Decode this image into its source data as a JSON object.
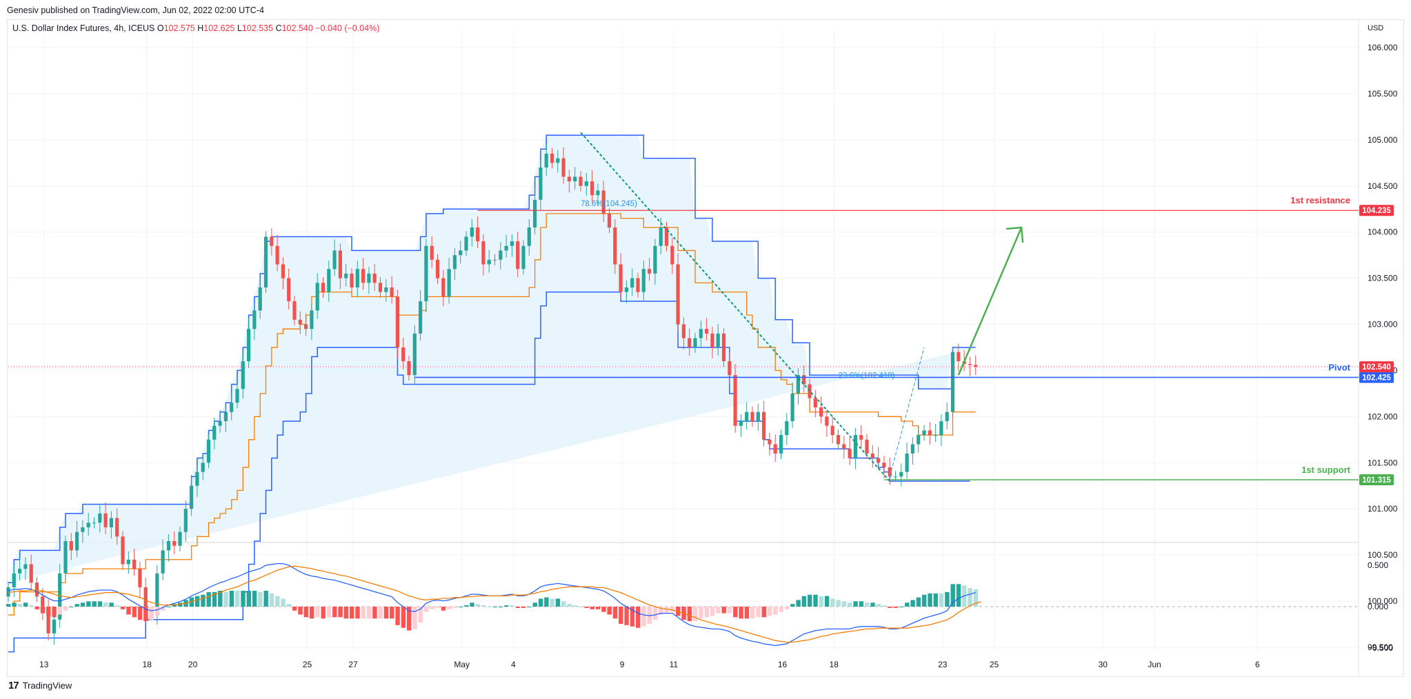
{
  "header": {
    "published": "Genesiv published on TradingView.com, Jun 02, 2022 02:00 UTC-4",
    "symbol": "U.S. Dollar Index Futures, 4h, ICEUS",
    "o_label": "O",
    "o": "102.575",
    "h_label": "H",
    "h": "102.625",
    "l_label": "L",
    "l": "102.535",
    "c_label": "C",
    "c": "102.540",
    "change": "−0.040 (−0.04%)"
  },
  "footer": {
    "brand": "TradingView",
    "logo": "17"
  },
  "colors": {
    "up": "#26a69a",
    "down": "#ef5350",
    "donchian": "#2962ff",
    "basis": "#f57c00",
    "fill": "#e3f2fd",
    "resistance": "#f23645",
    "support": "#4caf50",
    "pivot": "#2962ff"
  },
  "chart_data": [
    {
      "type": "candlestick",
      "currency": "USD",
      "title": "",
      "ylim": [
        99.3,
        106.5
      ],
      "y_ticks": [
        "106.000",
        "105.500",
        "105.000",
        "104.500",
        "104.000",
        "103.500",
        "103.000",
        "102.500",
        "102.000",
        "101.500",
        "101.000",
        "100.500",
        "100.000",
        "99.500"
      ],
      "x_ticks": [
        "13",
        "18",
        "20",
        "25",
        "27",
        "May",
        "4",
        "9",
        "11",
        "16",
        "18",
        "23",
        "25",
        "30",
        "Jun",
        "6"
      ],
      "last_price": "102.540",
      "levels": [
        {
          "name": "1st resistance",
          "value": 104.235,
          "label": "104.235"
        },
        {
          "name": "Pivot",
          "value": 102.425,
          "label": "102.425"
        },
        {
          "name": "1st support",
          "value": 101.315,
          "label": "101.315"
        }
      ],
      "fib_labels": [
        "78.6%(104.245)",
        "23.6%(102.410)"
      ],
      "closes": [
        100.15,
        100.3,
        100.35,
        100.4,
        100.2,
        100.05,
        99.9,
        99.65,
        99.8,
        100.3,
        100.65,
        100.55,
        100.75,
        100.8,
        100.85,
        100.85,
        100.95,
        100.8,
        100.9,
        100.7,
        100.4,
        100.45,
        100.35,
        100.15,
        99.85,
        99.85,
        100.3,
        100.55,
        100.65,
        100.6,
        100.75,
        101.0,
        101.25,
        101.4,
        101.5,
        101.75,
        101.9,
        101.95,
        102.05,
        102.15,
        102.3,
        102.6,
        102.95,
        103.15,
        103.4,
        103.95,
        103.85,
        103.65,
        103.5,
        103.25,
        103.05,
        103.0,
        102.95,
        103.15,
        103.45,
        103.35,
        103.6,
        103.8,
        103.5,
        103.55,
        103.4,
        103.6,
        103.45,
        103.55,
        103.45,
        103.35,
        103.4,
        103.3,
        102.75,
        102.6,
        102.45,
        102.9,
        103.25,
        103.85,
        103.7,
        103.5,
        103.3,
        103.6,
        103.75,
        103.8,
        103.95,
        104.05,
        103.9,
        103.65,
        103.7,
        103.7,
        103.8,
        103.85,
        103.9,
        103.6,
        103.85,
        104.05,
        104.35,
        104.7,
        104.85,
        104.75,
        104.8,
        104.6,
        104.55,
        104.6,
        104.5,
        104.55,
        104.4,
        104.45,
        104.2,
        104.05,
        103.65,
        103.35,
        103.4,
        103.5,
        103.35,
        103.6,
        103.55,
        103.85,
        104.05,
        103.85,
        103.65,
        103.0,
        102.85,
        102.75,
        102.85,
        102.95,
        102.9,
        102.75,
        102.9,
        102.6,
        102.45,
        101.9,
        101.95,
        102.05,
        101.95,
        102.05,
        101.75,
        101.7,
        101.6,
        101.8,
        101.95,
        102.25,
        102.45,
        102.35,
        102.2,
        102.1,
        102.0,
        101.9,
        101.8,
        101.7,
        101.65,
        101.55,
        101.8,
        101.75,
        101.6,
        101.55,
        101.5,
        101.45,
        101.35,
        101.35,
        101.4,
        101.6,
        101.7,
        101.8,
        101.85,
        101.8,
        101.8,
        101.95,
        102.05,
        102.7,
        102.6,
        102.57,
        102.56,
        102.54
      ],
      "donchian_upper": [
        100.2,
        100.45,
        100.55,
        100.55,
        100.55,
        100.55,
        100.55,
        100.55,
        100.55,
        100.8,
        100.95,
        100.95,
        100.95,
        101.05,
        101.05,
        101.05,
        101.05,
        101.05,
        101.05,
        101.05,
        101.05,
        101.05,
        101.05,
        101.05,
        101.05,
        101.05,
        101.05,
        101.05,
        101.05,
        101.05,
        101.05,
        101.05,
        101.35,
        101.55,
        101.6,
        101.85,
        101.95,
        102.05,
        102.15,
        102.35,
        102.5,
        102.75,
        103.1,
        103.3,
        103.55,
        103.9,
        103.95,
        103.95,
        103.95,
        103.95,
        103.95,
        103.95,
        103.95,
        103.95,
        103.95,
        103.95,
        103.95,
        103.95,
        103.95,
        103.95,
        103.8,
        103.8,
        103.8,
        103.8,
        103.8,
        103.8,
        103.8,
        103.8,
        103.8,
        103.8,
        103.8,
        103.8,
        103.95,
        104.2,
        104.2,
        104.2,
        104.25,
        104.25,
        104.25,
        104.25,
        104.25,
        104.25,
        104.25,
        104.25,
        104.25,
        104.25,
        104.25,
        104.25,
        104.25,
        104.25,
        104.25,
        104.4,
        104.6,
        104.9,
        105.05,
        105.05,
        105.05,
        105.05,
        105.05,
        105.05,
        105.05,
        105.05,
        105.05,
        105.05,
        105.05,
        105.05,
        105.05,
        105.05,
        105.05,
        105.05,
        105.05,
        104.8,
        104.8,
        104.8,
        104.8,
        104.8,
        104.8,
        104.8,
        104.8,
        104.8,
        104.15,
        104.15,
        104.15,
        103.9,
        103.9,
        103.9,
        103.9,
        103.9,
        103.9,
        103.9,
        103.9,
        103.5,
        103.5,
        103.5,
        103.05,
        103.05,
        103.05,
        102.8,
        102.8,
        102.8,
        102.45,
        102.45,
        102.45,
        102.45,
        102.45,
        102.45,
        102.45,
        102.45,
        102.45,
        102.45,
        102.45,
        102.45,
        102.45,
        102.45,
        102.45,
        102.45,
        102.45,
        102.45,
        102.45,
        102.3,
        102.3,
        102.3,
        102.3,
        102.3,
        102.3,
        102.75,
        102.75,
        102.75,
        102.75,
        102.75
      ],
      "donchian_lower": [
        99.45,
        99.6,
        99.6,
        99.6,
        99.6,
        99.6,
        99.6,
        99.6,
        99.6,
        99.6,
        99.6,
        99.6,
        99.6,
        99.6,
        99.6,
        99.6,
        99.6,
        99.6,
        99.6,
        99.6,
        99.6,
        99.6,
        99.6,
        99.6,
        99.8,
        99.8,
        99.8,
        99.8,
        99.8,
        99.8,
        99.8,
        99.8,
        99.8,
        99.8,
        99.8,
        99.8,
        99.8,
        99.8,
        99.8,
        99.8,
        99.8,
        100.1,
        100.4,
        100.65,
        100.95,
        101.2,
        101.55,
        101.8,
        101.95,
        101.95,
        101.95,
        102.05,
        102.25,
        102.65,
        102.75,
        102.75,
        102.75,
        102.75,
        102.75,
        102.75,
        102.75,
        102.75,
        102.75,
        102.75,
        102.75,
        102.75,
        102.75,
        102.75,
        102.45,
        102.35,
        102.35,
        102.35,
        102.35,
        102.35,
        102.35,
        102.35,
        102.35,
        102.35,
        102.35,
        102.35,
        102.35,
        102.35,
        102.35,
        102.35,
        102.35,
        102.35,
        102.35,
        102.35,
        102.35,
        102.35,
        102.35,
        102.35,
        102.85,
        103.2,
        103.35,
        103.35,
        103.35,
        103.35,
        103.35,
        103.35,
        103.35,
        103.35,
        103.35,
        103.35,
        103.35,
        103.35,
        103.35,
        103.25,
        103.25,
        103.25,
        103.25,
        103.25,
        103.25,
        103.25,
        103.25,
        103.25,
        103.25,
        102.75,
        102.75,
        102.75,
        102.75,
        102.75,
        102.75,
        102.75,
        102.75,
        102.75,
        102.25,
        101.95,
        101.95,
        101.95,
        101.95,
        101.95,
        101.75,
        101.65,
        101.65,
        101.65,
        101.65,
        101.65,
        101.65,
        101.65,
        101.65,
        101.65,
        101.65,
        101.65,
        101.65,
        101.65,
        101.65,
        101.55,
        101.55,
        101.55,
        101.55,
        101.55,
        101.45,
        101.4,
        101.3,
        101.3,
        101.3,
        101.3,
        101.3,
        101.3,
        101.3,
        101.3,
        101.3,
        101.3,
        101.3,
        101.3,
        101.3,
        101.3,
        101.3
      ],
      "basis": [
        99.85,
        100.0,
        100.1,
        100.1,
        100.1,
        100.1,
        100.1,
        100.1,
        100.1,
        100.2,
        100.3,
        100.3,
        100.3,
        100.35,
        100.35,
        100.35,
        100.35,
        100.35,
        100.35,
        100.35,
        100.35,
        100.35,
        100.35,
        100.35,
        100.45,
        100.45,
        100.45,
        100.45,
        100.45,
        100.45,
        100.45,
        100.45,
        100.6,
        100.7,
        100.7,
        100.85,
        100.9,
        100.95,
        101.0,
        101.1,
        101.2,
        101.45,
        101.75,
        102.0,
        102.25,
        102.55,
        102.75,
        102.9,
        102.95,
        102.95,
        102.95,
        103.0,
        103.1,
        103.3,
        103.35,
        103.35,
        103.35,
        103.35,
        103.35,
        103.35,
        103.3,
        103.3,
        103.3,
        103.3,
        103.3,
        103.3,
        103.3,
        103.3,
        103.1,
        103.1,
        103.1,
        103.1,
        103.15,
        103.3,
        103.3,
        103.3,
        103.3,
        103.3,
        103.3,
        103.3,
        103.3,
        103.3,
        103.3,
        103.3,
        103.3,
        103.3,
        103.3,
        103.3,
        103.3,
        103.3,
        103.3,
        103.4,
        103.7,
        104.05,
        104.2,
        104.2,
        104.2,
        104.2,
        104.2,
        104.2,
        104.2,
        104.2,
        104.2,
        104.2,
        104.2,
        104.2,
        104.2,
        104.15,
        104.15,
        104.15,
        104.15,
        104.05,
        104.05,
        104.05,
        104.05,
        104.05,
        104.05,
        103.8,
        103.8,
        103.8,
        103.45,
        103.45,
        103.45,
        103.35,
        103.35,
        103.35,
        103.35,
        103.35,
        103.35,
        103.1,
        102.95,
        102.75,
        102.75,
        102.75,
        102.5,
        102.4,
        102.35,
        102.25,
        102.25,
        102.25,
        102.05,
        102.05,
        102.05,
        102.05,
        102.05,
        102.05,
        102.05,
        102.05,
        102.05,
        102.05,
        102.05,
        102.05,
        102.0,
        102.0,
        102.0,
        102.0,
        101.95,
        101.95,
        101.9,
        101.8,
        101.8,
        101.8,
        101.8,
        101.8,
        101.8,
        102.05,
        102.05,
        102.05,
        102.05,
        102.05
      ]
    },
    {
      "type": "macd",
      "ylim": [
        -0.6,
        0.75
      ],
      "y_ticks": [
        "0.500",
        "0.000",
        "−0.500"
      ],
      "macd": [
        0.19,
        0.21,
        0.21,
        0.22,
        0.21,
        0.18,
        0.14,
        0.1,
        0.07,
        0.07,
        0.09,
        0.11,
        0.14,
        0.16,
        0.18,
        0.19,
        0.2,
        0.2,
        0.2,
        0.18,
        0.14,
        0.09,
        0.05,
        0.01,
        -0.03,
        -0.05,
        -0.04,
        -0.01,
        0.02,
        0.04,
        0.06,
        0.09,
        0.13,
        0.16,
        0.19,
        0.23,
        0.26,
        0.29,
        0.31,
        0.34,
        0.36,
        0.39,
        0.42,
        0.44,
        0.46,
        0.5,
        0.51,
        0.52,
        0.52,
        0.5,
        0.46,
        0.42,
        0.39,
        0.37,
        0.36,
        0.34,
        0.33,
        0.32,
        0.3,
        0.28,
        0.26,
        0.24,
        0.22,
        0.2,
        0.18,
        0.16,
        0.14,
        0.12,
        0.05,
        0.0,
        -0.05,
        -0.06,
        -0.03,
        0.04,
        0.07,
        0.08,
        0.07,
        0.08,
        0.1,
        0.11,
        0.13,
        0.15,
        0.15,
        0.14,
        0.13,
        0.13,
        0.13,
        0.14,
        0.15,
        0.13,
        0.13,
        0.15,
        0.19,
        0.24,
        0.26,
        0.27,
        0.28,
        0.27,
        0.26,
        0.25,
        0.24,
        0.23,
        0.22,
        0.21,
        0.19,
        0.15,
        0.1,
        0.04,
        0.0,
        -0.04,
        -0.08,
        -0.1,
        -0.11,
        -0.1,
        -0.08,
        -0.08,
        -0.08,
        -0.13,
        -0.18,
        -0.22,
        -0.24,
        -0.25,
        -0.26,
        -0.27,
        -0.27,
        -0.28,
        -0.3,
        -0.35,
        -0.38,
        -0.4,
        -0.42,
        -0.43,
        -0.45,
        -0.46,
        -0.47,
        -0.46,
        -0.45,
        -0.41,
        -0.37,
        -0.33,
        -0.31,
        -0.29,
        -0.28,
        -0.27,
        -0.27,
        -0.27,
        -0.27,
        -0.27,
        -0.25,
        -0.24,
        -0.24,
        -0.24,
        -0.24,
        -0.25,
        -0.27,
        -0.27,
        -0.26,
        -0.23,
        -0.2,
        -0.17,
        -0.14,
        -0.12,
        -0.1,
        -0.08,
        -0.05,
        0.05,
        0.1,
        0.13,
        0.15,
        0.17
      ],
      "signal": [
        0.17,
        0.18,
        0.19,
        0.19,
        0.2,
        0.2,
        0.19,
        0.17,
        0.15,
        0.13,
        0.12,
        0.11,
        0.12,
        0.13,
        0.14,
        0.15,
        0.16,
        0.17,
        0.17,
        0.17,
        0.16,
        0.15,
        0.13,
        0.11,
        0.08,
        0.05,
        0.03,
        0.02,
        0.02,
        0.02,
        0.03,
        0.04,
        0.06,
        0.08,
        0.1,
        0.12,
        0.15,
        0.17,
        0.2,
        0.22,
        0.24,
        0.27,
        0.3,
        0.32,
        0.35,
        0.38,
        0.41,
        0.44,
        0.46,
        0.48,
        0.49,
        0.48,
        0.47,
        0.46,
        0.44,
        0.43,
        0.41,
        0.4,
        0.38,
        0.37,
        0.35,
        0.33,
        0.31,
        0.29,
        0.27,
        0.25,
        0.23,
        0.21,
        0.19,
        0.16,
        0.13,
        0.11,
        0.09,
        0.08,
        0.09,
        0.09,
        0.1,
        0.1,
        0.11,
        0.11,
        0.12,
        0.12,
        0.13,
        0.13,
        0.13,
        0.13,
        0.13,
        0.13,
        0.14,
        0.14,
        0.14,
        0.15,
        0.16,
        0.18,
        0.19,
        0.21,
        0.22,
        0.23,
        0.24,
        0.24,
        0.24,
        0.24,
        0.24,
        0.23,
        0.23,
        0.21,
        0.19,
        0.17,
        0.14,
        0.11,
        0.08,
        0.05,
        0.02,
        0.0,
        -0.02,
        -0.03,
        -0.04,
        -0.06,
        -0.08,
        -0.11,
        -0.13,
        -0.16,
        -0.18,
        -0.2,
        -0.22,
        -0.23,
        -0.25,
        -0.27,
        -0.29,
        -0.31,
        -0.33,
        -0.35,
        -0.37,
        -0.39,
        -0.41,
        -0.42,
        -0.43,
        -0.43,
        -0.42,
        -0.41,
        -0.4,
        -0.38,
        -0.36,
        -0.35,
        -0.33,
        -0.32,
        -0.31,
        -0.3,
        -0.29,
        -0.28,
        -0.27,
        -0.27,
        -0.26,
        -0.26,
        -0.26,
        -0.26,
        -0.26,
        -0.26,
        -0.25,
        -0.24,
        -0.23,
        -0.22,
        -0.2,
        -0.18,
        -0.16,
        -0.12,
        -0.07,
        -0.03,
        0.01,
        0.04,
        0.06
      ]
    }
  ]
}
